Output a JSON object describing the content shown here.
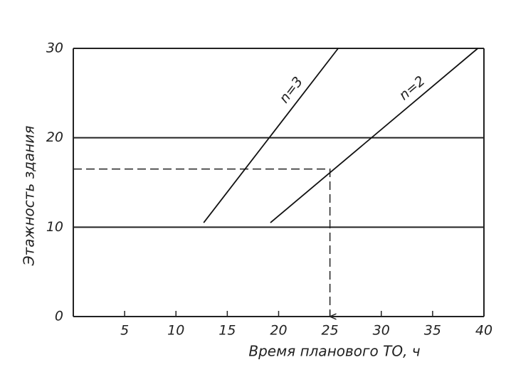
{
  "chart_data": {
    "type": "line",
    "x_label": "Время планового ТО, ч",
    "y_label": "Этажность здания",
    "xlim": [
      0,
      40
    ],
    "ylim": [
      0,
      30
    ],
    "xticks": [
      5,
      10,
      15,
      20,
      25,
      30,
      35,
      40
    ],
    "yticks": [
      0,
      10,
      20,
      30
    ],
    "grid": true,
    "series": [
      {
        "name": "n=3",
        "color": "#111111",
        "x": [
          12.7,
          25.8
        ],
        "values": [
          10.5,
          30
        ]
      },
      {
        "name": "n=2",
        "color": "#111111",
        "x": [
          19.2,
          39.4
        ],
        "values": [
          10.5,
          30
        ]
      }
    ],
    "guide": {
      "x": [
        0,
        25,
        25
      ],
      "values": [
        16.5,
        16.5,
        0
      ]
    }
  }
}
